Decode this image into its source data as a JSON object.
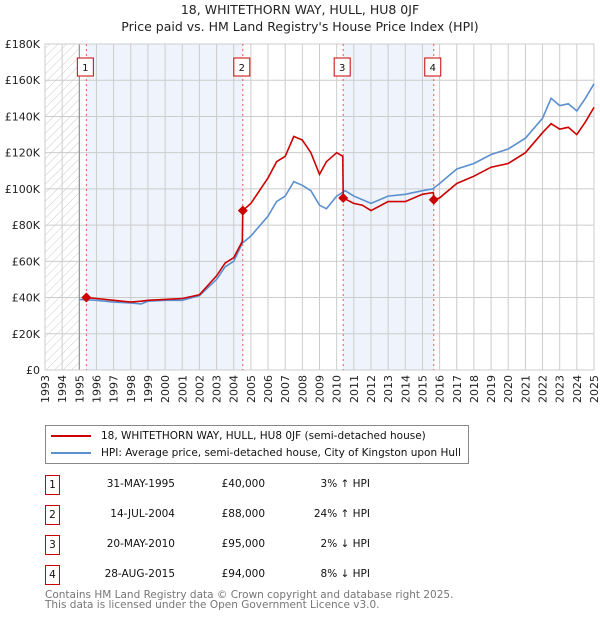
{
  "chart_data": {
    "type": "line",
    "title": "18, WHITETHORN WAY, HULL, HU8 0JF",
    "subtitle": "Price paid vs. HM Land Registry's House Price Index (HPI)",
    "xlim": [
      1993,
      2025
    ],
    "ylim": [
      0,
      180000
    ],
    "x_ticks": [
      "1993",
      "1994",
      "1995",
      "1996",
      "1997",
      "1998",
      "1999",
      "2000",
      "2001",
      "2002",
      "2003",
      "2004",
      "2005",
      "2006",
      "2007",
      "2008",
      "2009",
      "2010",
      "2011",
      "2012",
      "2013",
      "2014",
      "2015",
      "2016",
      "2017",
      "2018",
      "2019",
      "2020",
      "2021",
      "2022",
      "2023",
      "2024",
      "2025"
    ],
    "y_ticks": [
      {
        "v": 0,
        "label": "£0"
      },
      {
        "v": 20000,
        "label": "£20K"
      },
      {
        "v": 40000,
        "label": "£40K"
      },
      {
        "v": 60000,
        "label": "£60K"
      },
      {
        "v": 80000,
        "label": "£80K"
      },
      {
        "v": 100000,
        "label": "£100K"
      },
      {
        "v": 120000,
        "label": "£120K"
      },
      {
        "v": 140000,
        "label": "£140K"
      },
      {
        "v": 160000,
        "label": "£160K"
      },
      {
        "v": 180000,
        "label": "£180K"
      }
    ],
    "grid": true,
    "hatched_range": [
      1993,
      1995
    ],
    "shaded_ranges": [
      [
        1995.41,
        2004.53
      ],
      [
        2010.38,
        2015.66
      ]
    ],
    "series": [
      {
        "name": "18, WHITETHORN WAY, HULL, HU8 0JF (semi-detached house)",
        "color": "#cc0000",
        "x": [
          1995.41,
          1996,
          1997,
          1998,
          1998.6,
          1999,
          2000,
          2001,
          2002,
          2003,
          2003.5,
          2004,
          2004.5,
          2004.53,
          2005,
          2006,
          2006.5,
          2007,
          2007.5,
          2008,
          2008.5,
          2009,
          2009.4,
          2010,
          2010.36,
          2010.38,
          2011,
          2011.5,
          2012,
          2013,
          2014,
          2015,
          2015.64,
          2015.66,
          2016,
          2017,
          2018,
          2019,
          2020,
          2021,
          2022,
          2022.5,
          2023,
          2023.5,
          2024,
          2024.5,
          2025
        ],
        "y": [
          40000,
          39500,
          38500,
          37500,
          38000,
          38500,
          39000,
          39500,
          41500,
          52000,
          59000,
          62000,
          71000,
          88000,
          92000,
          106000,
          115000,
          118000,
          129000,
          127000,
          120000,
          108000,
          115000,
          120000,
          118000,
          95000,
          92000,
          91000,
          88000,
          93000,
          93000,
          97000,
          98000,
          94000,
          95000,
          103000,
          107000,
          112000,
          114000,
          120000,
          131000,
          136000,
          133000,
          134000,
          130000,
          137000,
          145000
        ]
      },
      {
        "name": "HPI: Average price, semi-detached house, City of Kingston upon Hull",
        "color": "#5b8fd0",
        "x": [
          1995,
          1996,
          1997,
          1998,
          1998.6,
          1999,
          2000,
          2001,
          2002,
          2003,
          2003.5,
          2004,
          2004.5,
          2005,
          2006,
          2006.5,
          2007,
          2007.5,
          2008,
          2008.5,
          2009,
          2009.4,
          2010,
          2010.5,
          2011,
          2012,
          2013,
          2014,
          2015,
          2015.6,
          2016,
          2017,
          2018,
          2019,
          2020,
          2021,
          2022,
          2022.5,
          2023,
          2023.5,
          2024,
          2024.5,
          2025
        ],
        "y": [
          39000,
          38500,
          37500,
          37000,
          36500,
          38000,
          38500,
          38500,
          41000,
          50000,
          57000,
          60000,
          70000,
          74000,
          85000,
          93000,
          96000,
          104000,
          102000,
          99000,
          91000,
          89000,
          96000,
          99000,
          96000,
          92000,
          96000,
          97000,
          99000,
          100000,
          103000,
          111000,
          114000,
          119000,
          122000,
          128000,
          139000,
          150000,
          146000,
          147000,
          143000,
          150000,
          158000
        ]
      }
    ],
    "sales": [
      {
        "num": "1",
        "x": 1995.41,
        "price": 40000
      },
      {
        "num": "2",
        "x": 2004.53,
        "price": 88000
      },
      {
        "num": "3",
        "x": 2010.38,
        "price": 95000
      },
      {
        "num": "4",
        "x": 2015.66,
        "price": 94000
      }
    ],
    "legend_position": "below"
  },
  "legend": {
    "property": "18, WHITETHORN WAY, HULL, HU8 0JF (semi-detached house)",
    "hpi": "HPI: Average price, semi-detached house, City of Kingston upon Hull"
  },
  "table": [
    {
      "num": "1",
      "date": "31-MAY-1995",
      "price": "£40,000",
      "hpi": "3% ↑ HPI"
    },
    {
      "num": "2",
      "date": "14-JUL-2004",
      "price": "£88,000",
      "hpi": "24% ↑ HPI"
    },
    {
      "num": "3",
      "date": "20-MAY-2010",
      "price": "£95,000",
      "hpi": "2% ↓ HPI"
    },
    {
      "num": "4",
      "date": "28-AUG-2015",
      "price": "£94,000",
      "hpi": "8% ↓ HPI"
    }
  ],
  "footer": {
    "line1": "Contains HM Land Registry data © Crown copyright and database right 2025.",
    "line2": "This data is licensed under the Open Government Licence v3.0."
  },
  "colors": {
    "property": "#cc0000",
    "hpi": "#5b8fd0",
    "shade": "#eef3fc",
    "grid": "#cccccc"
  }
}
